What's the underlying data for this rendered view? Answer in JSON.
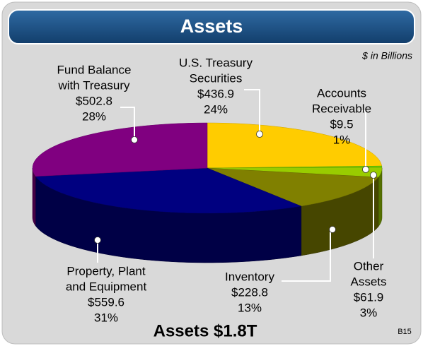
{
  "chart_data": {
    "type": "pie",
    "title": "Assets",
    "subtitle": "$ in Billions",
    "footer": "Assets $1.8T",
    "page_code": "B15",
    "categories": [
      [
        "U.S. Treasury",
        "Securities"
      ],
      [
        "Accounts",
        "Receivable"
      ],
      [
        "Other",
        "Assets"
      ],
      [
        "Inventory"
      ],
      [
        "Property, Plant",
        "and Equipment"
      ],
      [
        "Fund Balance",
        "with Treasury"
      ]
    ],
    "values": [
      436.9,
      9.5,
      61.9,
      228.8,
      559.6,
      502.8
    ],
    "value_labels": [
      "$436.9",
      "$9.5",
      "$61.9",
      "$228.8",
      "$559.6",
      "$502.8"
    ],
    "percentages": [
      24,
      1,
      3,
      13,
      31,
      28
    ],
    "percentage_labels": [
      "24%",
      "1%",
      "3%",
      "13%",
      "31%",
      "28%"
    ],
    "colors": [
      "#ffcc00",
      "#66cc00",
      "#99cc00",
      "#808000",
      "#000080",
      "#800080"
    ]
  }
}
